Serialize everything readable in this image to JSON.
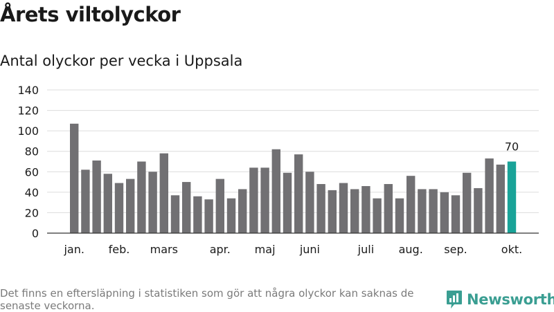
{
  "title": "Årets viltolyckor",
  "subtitle": "Antal olyckor per vecka i Uppsala",
  "footnote": "Det finns en eftersläpning i statistiken som gör att några olyckor kan saknas de senaste veckorna.",
  "brand": {
    "name": "Newsworthy",
    "icon": "bar-chart-logo-icon",
    "color": "#3a9e92"
  },
  "chart_data": {
    "type": "bar",
    "title": "",
    "xlabel": "",
    "ylabel": "",
    "ylim": [
      0,
      140
    ],
    "yticks": [
      0,
      20,
      40,
      60,
      80,
      100,
      120,
      140
    ],
    "grid": true,
    "values": [
      107,
      62,
      71,
      58,
      49,
      53,
      70,
      60,
      78,
      37,
      50,
      36,
      33,
      53,
      34,
      43,
      64,
      64,
      82,
      59,
      77,
      60,
      48,
      42,
      49,
      43,
      46,
      34,
      48,
      34,
      56,
      43,
      43,
      40,
      37,
      59,
      44,
      73,
      67,
      70
    ],
    "month_labels": [
      {
        "label": "jan.",
        "bar_index": 0
      },
      {
        "label": "feb.",
        "bar_index": 4
      },
      {
        "label": "mars",
        "bar_index": 8
      },
      {
        "label": "apr.",
        "bar_index": 13
      },
      {
        "label": "maj",
        "bar_index": 17
      },
      {
        "label": "juni",
        "bar_index": 21
      },
      {
        "label": "juli",
        "bar_index": 26
      },
      {
        "label": "aug.",
        "bar_index": 30
      },
      {
        "label": "sep.",
        "bar_index": 34
      },
      {
        "label": "okt.",
        "bar_index": 39
      }
    ],
    "highlight": {
      "bar_index": 39,
      "label": "70"
    },
    "colors": {
      "bar": "#717073",
      "highlight": "#19a398",
      "grid": "#dcdcdc",
      "axis": "#333333"
    }
  }
}
